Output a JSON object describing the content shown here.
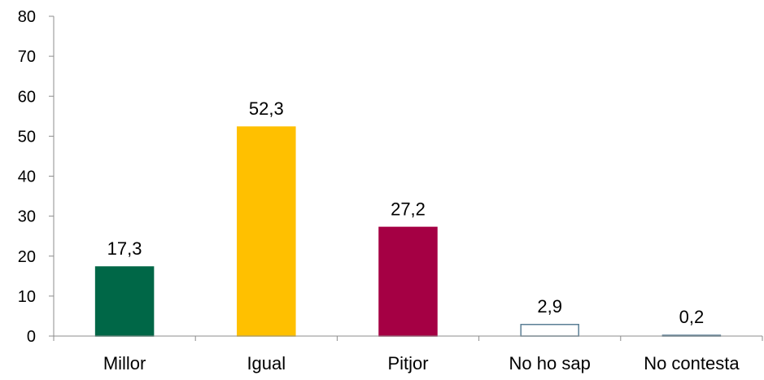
{
  "chart_data": {
    "type": "bar",
    "title": "",
    "xlabel": "",
    "ylabel": "",
    "ylim": [
      0,
      80
    ],
    "yticks": [
      "0",
      "10",
      "20",
      "30",
      "40",
      "50",
      "60",
      "70",
      "80"
    ],
    "grid": false,
    "legend": "none",
    "categories": [
      "Millor",
      "Igual",
      "Pitjor",
      "No ho sap",
      "No contesta"
    ],
    "values": [
      17.3,
      52.3,
      27.2,
      2.9,
      0.2
    ],
    "data_labels": [
      "17,3",
      "52,3",
      "27,2",
      "2,9",
      "0,2"
    ],
    "fill_colors": [
      "#006747",
      "#FFC000",
      "#A50044",
      "#FFFFFF",
      "#FFFFFF"
    ],
    "stroke_colors": [
      "#006747",
      "#FFC000",
      "#A50044",
      "#5B7F95",
      "#5B7F95"
    ]
  }
}
